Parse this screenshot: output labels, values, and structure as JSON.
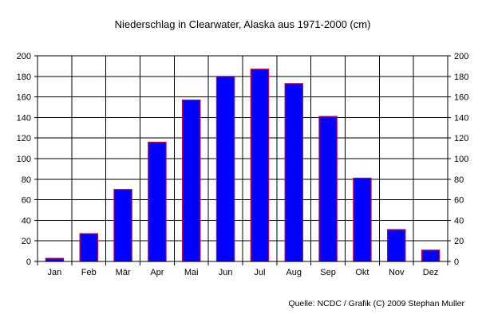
{
  "chart_data": {
    "type": "bar",
    "title": "Niederschlag in Clearwater, Alaska aus 1971-2000 (cm)",
    "xlabel": "",
    "ylabel": "",
    "categories": [
      "Jan",
      "Feb",
      "Mär",
      "Apr",
      "Mai",
      "Jun",
      "Jul",
      "Aug",
      "Sep",
      "Okt",
      "Nov",
      "Dez"
    ],
    "values": [
      3,
      27,
      70,
      116,
      157,
      180,
      187,
      173,
      141,
      81,
      31,
      11
    ],
    "ylim": [
      0,
      200
    ],
    "yticks": [
      "0",
      "20",
      "40",
      "60",
      "80",
      "100",
      "120",
      "140",
      "160",
      "180",
      "200"
    ],
    "grid": true,
    "legend": "none",
    "colors": {
      "bar_fill": "#0000FF",
      "bar_stroke": "#CC0033",
      "grid": "#000000"
    }
  },
  "source": "Quelle: NCDC / Grafik (C) 2009 Stephan Muller"
}
